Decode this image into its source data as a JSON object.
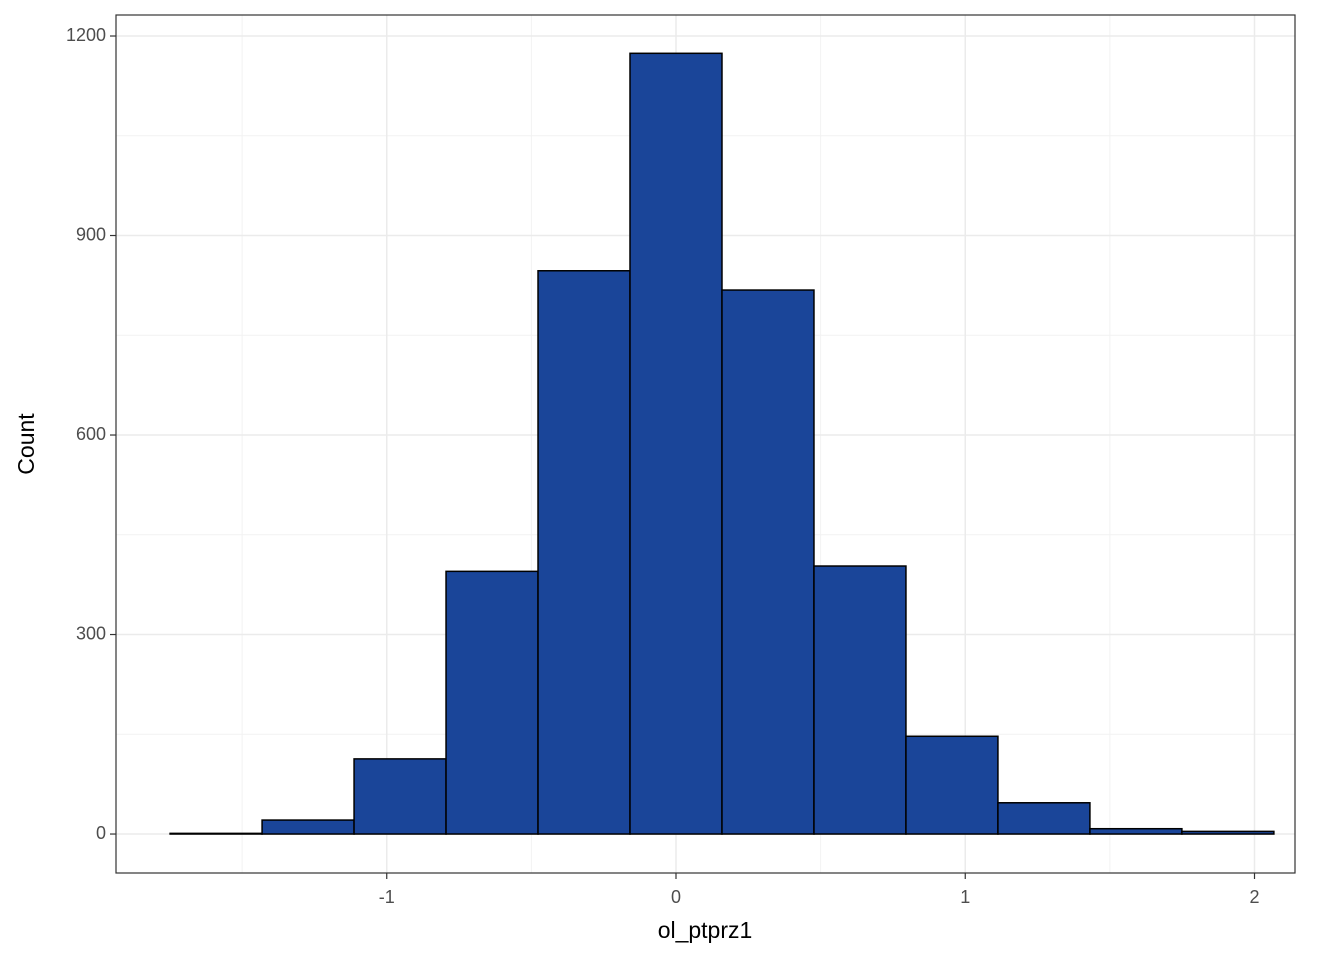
{
  "chart_data": {
    "type": "histogram",
    "x_label": "ol_ptprz1",
    "y_label": "Count",
    "bins": [
      -1.749,
      -1.431,
      -1.113,
      -0.795,
      -0.477,
      -0.159,
      0.159,
      0.477,
      0.795,
      1.113,
      1.431,
      1.749,
      2.067
    ],
    "values": [
      1,
      21,
      113,
      395,
      847,
      1174,
      818,
      403,
      147,
      47,
      8,
      4
    ],
    "color": "#1a4599",
    "xlim": [
      -1.936,
      2.14
    ],
    "ylim": [
      -58.6,
      1231.6
    ],
    "xticks": [
      -1,
      0,
      1,
      2
    ],
    "yticks": [
      0,
      300,
      600,
      900,
      1200
    ],
    "grid": true,
    "minor_grid": true
  }
}
